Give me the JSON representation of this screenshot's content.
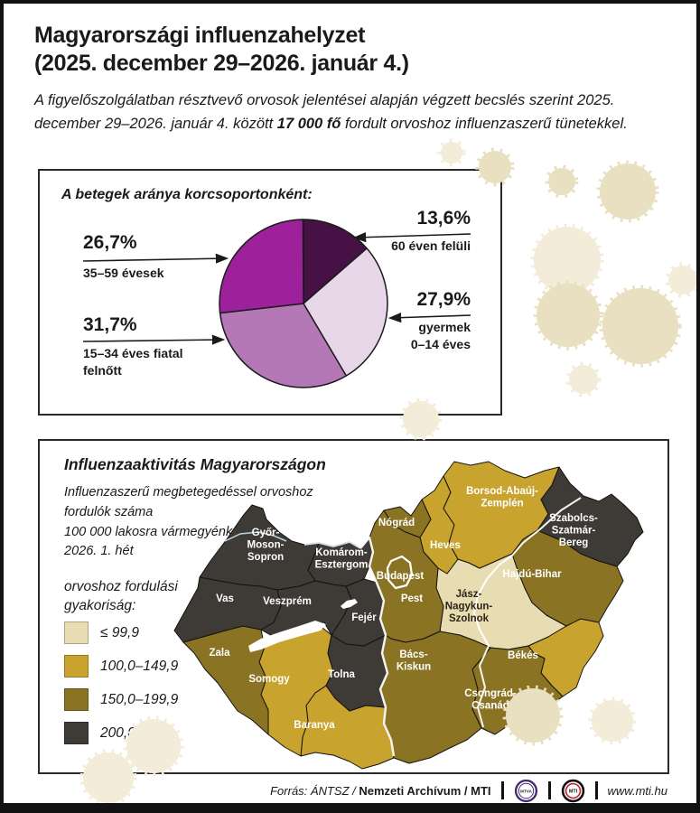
{
  "header": {
    "title_line1": "Magyarországi influenzahelyzet",
    "title_line2": "(2025. december 29–2026. január 4.)",
    "intro_line1": "A figyelőszolgálatban résztvevő orvosok jelentései alapján végzett becslés szerint 2025.",
    "intro_line2_before": "december 29–2026. január 4. között ",
    "intro_bold": "17 000 fő",
    "intro_line2_after": " fordult orvoshoz influenzaszerű tünetekkel."
  },
  "pie_section": {
    "title": "A betegek aránya korcsoportonként:",
    "callouts": [
      {
        "pct": "26,7%",
        "lines": [
          "35–59 évesek"
        ]
      },
      {
        "pct": "31,7%",
        "lines": [
          "15–34 éves fiatal",
          "felnőtt"
        ]
      },
      {
        "pct": "13,6%",
        "lines": [
          "60 éven felüli"
        ]
      },
      {
        "pct": "27,9%",
        "lines": [
          "gyermek",
          "0–14 éves"
        ]
      }
    ]
  },
  "map_section": {
    "title": "Influenzaaktivitás Magyarországon",
    "subtitle_lines": [
      "Influenzaszerű megbetegedéssel orvoshoz fordulók száma",
      "100 000 lakosra vármegyénként",
      "2026. 1. hét"
    ],
    "legend_title_lines": [
      "orvoshoz fordulási",
      "gyakoriság:"
    ],
    "legend": [
      {
        "label": "≤ 99,9",
        "color": "#e8ddb2"
      },
      {
        "label": "100,0–149,9",
        "color": "#c8a42e"
      },
      {
        "label": "150,0–199,9",
        "color": "#8a7423"
      },
      {
        "label": "200,0 ≤",
        "color": "#3e3a36"
      }
    ]
  },
  "chart_data": [
    {
      "type": "pie",
      "title": "A betegek aránya korcsoportonként:",
      "unit": "%",
      "slices": [
        {
          "label": "60 éven felüli",
          "value": 13.6,
          "display": "13,6%",
          "color": "#461245"
        },
        {
          "label": "gyermek 0–14 éves",
          "value": 27.9,
          "display": "27,9%",
          "color": "#e7d7e9"
        },
        {
          "label": "15–34 éves fiatal felnőtt",
          "value": 31.7,
          "display": "31,7%",
          "color": "#b478b6"
        },
        {
          "label": "35–59 évesek",
          "value": 26.7,
          "display": "26,7%",
          "color": "#9e219c"
        }
      ]
    },
    {
      "type": "choropleth",
      "title": "Influenzaaktivitás Magyarországon",
      "subtitle": "Influenzaszerű megbetegedéssel orvoshoz fordulók száma 100 000 lakosra vármegyénként, 2026. 1. hét",
      "bins": [
        "≤ 99,9",
        "100,0–149,9",
        "150,0–199,9",
        "200,0 ≤"
      ],
      "regions": [
        {
          "id": "gyor",
          "name": "Győr-Moson-Sopron",
          "lines": [
            "Győr-",
            "Moson-",
            "Sopron"
          ],
          "bin_index": 3,
          "bin": "200,0 ≤"
        },
        {
          "id": "komarom",
          "name": "Komárom-Esztergom",
          "lines": [
            "Komárom-",
            "Esztergom"
          ],
          "bin_index": 3,
          "bin": "200,0 ≤"
        },
        {
          "id": "vas",
          "name": "Vas",
          "lines": [
            "Vas"
          ],
          "bin_index": 3,
          "bin": "200,0 ≤"
        },
        {
          "id": "veszprem",
          "name": "Veszprém",
          "lines": [
            "Veszprém"
          ],
          "bin_index": 3,
          "bin": "200,0 ≤"
        },
        {
          "id": "fejer",
          "name": "Fejér",
          "lines": [
            "Fejér"
          ],
          "bin_index": 3,
          "bin": "200,0 ≤"
        },
        {
          "id": "tolna",
          "name": "Tolna",
          "lines": [
            "Tolna"
          ],
          "bin_index": 3,
          "bin": "200,0 ≤"
        },
        {
          "id": "szabolcs",
          "name": "Szabolcs-Szatmár-Bereg",
          "lines": [
            "Szabolcs-",
            "Szatmár-",
            "Bereg"
          ],
          "bin_index": 3,
          "bin": "200,0 ≤"
        },
        {
          "id": "zala",
          "name": "Zala",
          "lines": [
            "Zala"
          ],
          "bin_index": 2,
          "bin": "150,0–199,9"
        },
        {
          "id": "nograd",
          "name": "Nógrád",
          "lines": [
            "Nógrád"
          ],
          "bin_index": 2,
          "bin": "150,0–199,9"
        },
        {
          "id": "budapest",
          "name": "Budapest",
          "lines": [
            "Budapest"
          ],
          "bin_index": 2,
          "bin": "150,0–199,9"
        },
        {
          "id": "pest",
          "name": "Pest",
          "lines": [
            "Pest"
          ],
          "bin_index": 2,
          "bin": "150,0–199,9"
        },
        {
          "id": "hajdu",
          "name": "Hajdú-Bihar",
          "lines": [
            "Hajdú-Bihar"
          ],
          "bin_index": 2,
          "bin": "150,0–199,9"
        },
        {
          "id": "bacs",
          "name": "Bács-Kiskun",
          "lines": [
            "Bács-",
            "Kiskun"
          ],
          "bin_index": 2,
          "bin": "150,0–199,9"
        },
        {
          "id": "csongrad",
          "name": "Csongrád-Csanád",
          "lines": [
            "Csongrád-",
            "Csanád"
          ],
          "bin_index": 2,
          "bin": "150,0–199,9"
        },
        {
          "id": "somogy",
          "name": "Somogy",
          "lines": [
            "Somogy"
          ],
          "bin_index": 1,
          "bin": "100,0–149,9"
        },
        {
          "id": "baranya",
          "name": "Baranya",
          "lines": [
            "Baranya"
          ],
          "bin_index": 1,
          "bin": "100,0–149,9"
        },
        {
          "id": "borsod",
          "name": "Borsod-Abaúj-Zemplén",
          "lines": [
            "Borsod-Abaúj-",
            "Zemplén"
          ],
          "bin_index": 1,
          "bin": "100,0–149,9"
        },
        {
          "id": "heves",
          "name": "Heves",
          "lines": [
            "Heves"
          ],
          "bin_index": 1,
          "bin": "100,0–149,9"
        },
        {
          "id": "bekes",
          "name": "Békés",
          "lines": [
            "Békés"
          ],
          "bin_index": 1,
          "bin": "100,0–149,9"
        },
        {
          "id": "jasz",
          "name": "Jász-Nagykun-Szolnok",
          "lines": [
            "Jász-",
            "Nagykun-",
            "Szolnok"
          ],
          "bin_index": 0,
          "bin": "≤ 99,9"
        }
      ]
    }
  ],
  "footer": {
    "source_prefix": "Forrás: ÁNTSZ /",
    "source_bold": "Nemzeti Archívum",
    "source_suffix": "/ MTI",
    "mtva_label": "MTVA",
    "mti_label": "MTI",
    "website": "www.mti.hu"
  },
  "colors": {
    "text": "#1a1a1a",
    "pie_dark_purple": "#461245",
    "pie_light_lavender": "#e7d7e9",
    "pie_mauve": "#b478b6",
    "pie_magenta": "#9e219c",
    "map_cream": "#e8ddb2",
    "map_gold": "#c8a42e",
    "map_olive": "#8a7423",
    "map_dark": "#3e3a36",
    "decor_blob_beige": "#e9dfc1",
    "decor_blob_light": "#f2ecd9",
    "mtva_purple": "#4a2a72",
    "mti_red": "#cc1d2a"
  }
}
